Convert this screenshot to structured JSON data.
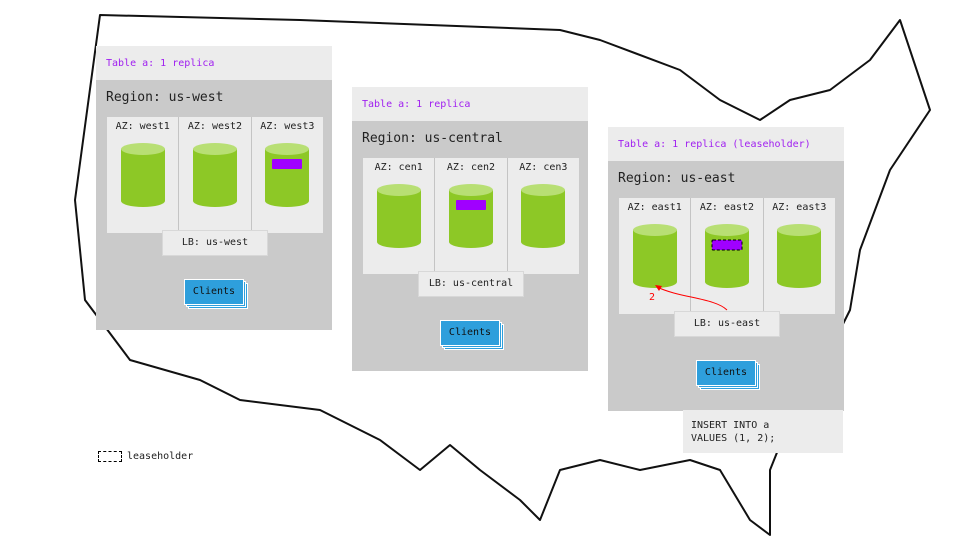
{
  "colors": {
    "replica": "#a000ff",
    "cylinder": "#8dc826",
    "cylinder_top": "#b8df74",
    "clients": "#2e9fdc",
    "region": "#cacaca",
    "panel": "#ececec",
    "arrow": "#ff0000"
  },
  "regions": [
    {
      "header": "Table a: 1 replica",
      "title": "Region: us-west",
      "azs": [
        "AZ: west1",
        "AZ: west2",
        "AZ: west3"
      ],
      "replica_az": 2,
      "leaseholder": false,
      "lb": "LB: us-west",
      "clients": "Clients"
    },
    {
      "header": "Table a: 1 replica",
      "title": "Region: us-central",
      "azs": [
        "AZ: cen1",
        "AZ: cen2",
        "AZ: cen3"
      ],
      "replica_az": 1,
      "leaseholder": false,
      "lb": "LB: us-central",
      "clients": "Clients"
    },
    {
      "header": "Table a: 1 replica (leaseholder)",
      "title": "Region: us-east",
      "azs": [
        "AZ: east1",
        "AZ: east2",
        "AZ: east3"
      ],
      "replica_az": 1,
      "leaseholder": true,
      "lb": "LB: us-east",
      "clients": "Clients"
    }
  ],
  "arrow_label": "2",
  "sql": "INSERT INTO a\nVALUES (1, 2);",
  "legend": {
    "label": "leaseholder",
    "icon": "dashed-box-icon"
  }
}
